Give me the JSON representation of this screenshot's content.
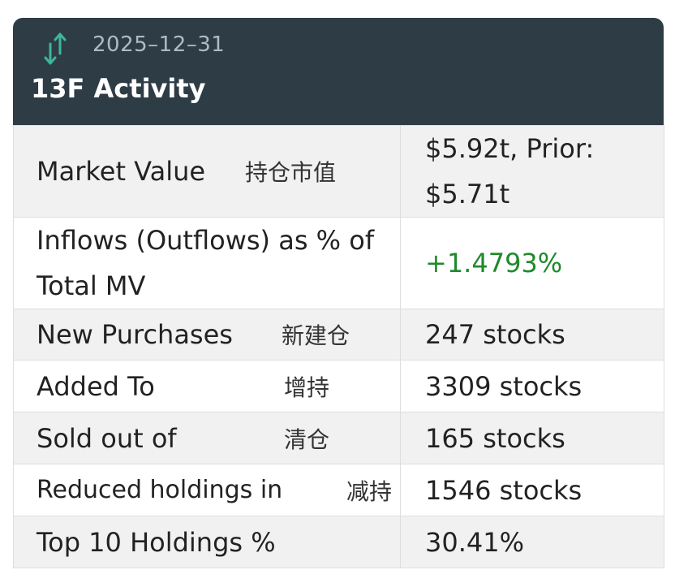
{
  "header": {
    "icon": "up-down-arrows-icon",
    "date": "2025–12–31",
    "title": "13F Activity"
  },
  "colors": {
    "header_bg": "#2e3c46",
    "positive": "#1f8a2a",
    "icon": "#3db79a"
  },
  "rows": [
    {
      "label_en": "Market Value",
      "label_zh": "持仓市值",
      "value": "$5.92t, Prior: $5.71t"
    },
    {
      "label_en": "Inflows (Outflows) as % of Total MV",
      "label_zh": "",
      "value": "+1.4793%"
    },
    {
      "label_en": "New Purchases",
      "label_zh": "新建仓",
      "value": "247 stocks"
    },
    {
      "label_en": "Added To",
      "label_zh": "增持",
      "value": "3309 stocks"
    },
    {
      "label_en": "Sold out of",
      "label_zh": "清仓",
      "value": "165 stocks"
    },
    {
      "label_en": "Reduced holdings in",
      "label_zh": "减持",
      "value": "1546 stocks"
    },
    {
      "label_en": "Top 10 Holdings %",
      "label_zh": "",
      "value": "30.41%"
    }
  ]
}
